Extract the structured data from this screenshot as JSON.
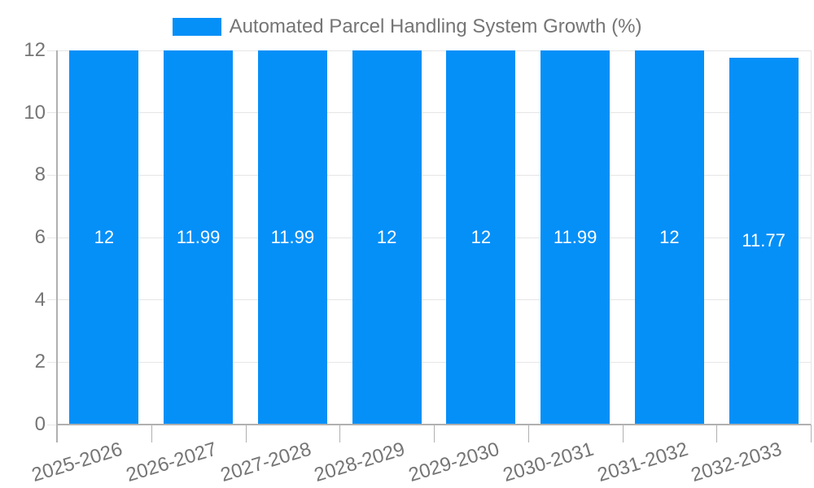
{
  "chart_data": {
    "type": "bar",
    "title": "Automated Parcel Handling System Growth (%)",
    "categories": [
      "2025-2026",
      "2026-2027",
      "2027-2028",
      "2028-2029",
      "2029-2030",
      "2030-2031",
      "2031-2032",
      "2032-2033"
    ],
    "values": [
      12,
      11.99,
      11.99,
      12,
      12,
      11.99,
      12,
      11.77
    ],
    "value_labels": [
      "12",
      "11.99",
      "11.99",
      "12",
      "12",
      "11.99",
      "12",
      "11.77"
    ],
    "xlabel": "",
    "ylabel": "",
    "ylim": [
      0,
      12
    ],
    "yticks": [
      0,
      2,
      4,
      6,
      8,
      10,
      12
    ],
    "ytick_labels": [
      "0",
      "2",
      "4",
      "6",
      "8",
      "10",
      "12"
    ],
    "grid": true,
    "legend_position": "top",
    "xlabel_rotation_deg": -17,
    "colors": {
      "bar": "#0590f8",
      "bar_value_text": "#ffffff",
      "axis_text": "#757575",
      "title_text": "#757575",
      "gridline": "#e6e6e6",
      "axis_line": "#b0b0b0",
      "background": "#ffffff"
    }
  }
}
